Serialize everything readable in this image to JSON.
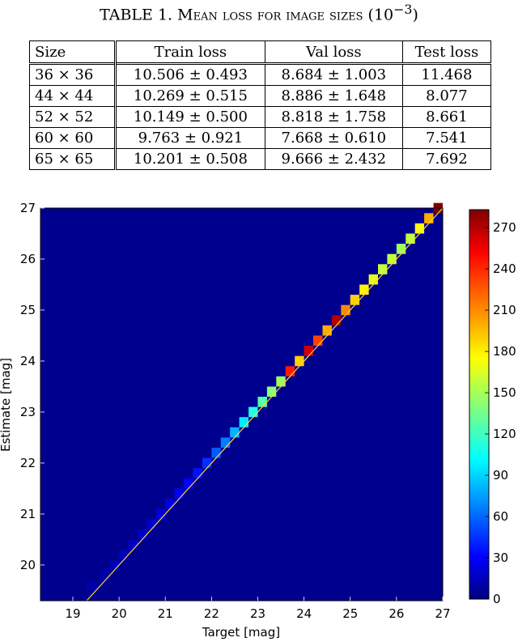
{
  "caption": {
    "prefix": "TABLE 1. ",
    "title_sc": "Mean loss for image sizes",
    "unit_base": "(10",
    "unit_exp": "−3",
    "unit_close": ")"
  },
  "table": {
    "headers": [
      "Size",
      "Train loss",
      "Val loss",
      "Test loss"
    ],
    "rows": [
      [
        "36 × 36",
        "10.506 ± 0.493",
        "8.684 ± 1.003",
        "11.468"
      ],
      [
        "44 × 44",
        "10.269 ± 0.515",
        "8.886 ± 1.648",
        "8.077"
      ],
      [
        "52 × 52",
        "10.149 ± 0.500",
        "8.818 ± 1.758",
        "8.661"
      ],
      [
        "60 × 60",
        "9.763 ± 0.921",
        "7.668 ± 0.610",
        "7.541"
      ],
      [
        "65 × 65",
        "10.201 ± 0.508",
        "9.666 ± 2.432",
        "7.692"
      ]
    ]
  },
  "chart_data": {
    "type": "heatmap",
    "xlabel": "Target [mag]",
    "ylabel": "Estimate [mag]",
    "xlim": [
      18.3,
      27
    ],
    "ylim": [
      19.3,
      27
    ],
    "xticks": [
      "19",
      "20",
      "21",
      "22",
      "23",
      "24",
      "25",
      "26",
      "27"
    ],
    "yticks": [
      "20",
      "21",
      "22",
      "23",
      "24",
      "25",
      "26",
      "27"
    ],
    "bin_width_mag": 0.2,
    "colorbar": {
      "ticks": [
        "0",
        "30",
        "60",
        "90",
        "120",
        "150",
        "180",
        "210",
        "240",
        "270"
      ],
      "range": [
        0,
        283
      ],
      "colormap": "jet"
    },
    "background_color": "#00008f",
    "identity_line": {
      "from": [
        19.3,
        19.3
      ],
      "to": [
        27,
        27
      ],
      "color": "#ffd23f"
    },
    "cells": [
      {
        "x": 19.3,
        "y": 19.5,
        "v": 10
      },
      {
        "x": 19.6,
        "y": 19.7,
        "v": 12
      },
      {
        "x": 19.8,
        "y": 19.9,
        "v": 14
      },
      {
        "x": 20.0,
        "y": 20.1,
        "v": 16
      },
      {
        "x": 20.2,
        "y": 20.3,
        "v": 18
      },
      {
        "x": 20.4,
        "y": 20.5,
        "v": 20
      },
      {
        "x": 20.6,
        "y": 20.7,
        "v": 22
      },
      {
        "x": 20.8,
        "y": 20.9,
        "v": 24
      },
      {
        "x": 21.0,
        "y": 21.1,
        "v": 28
      },
      {
        "x": 21.2,
        "y": 21.3,
        "v": 32
      },
      {
        "x": 21.4,
        "y": 21.5,
        "v": 36
      },
      {
        "x": 21.6,
        "y": 21.7,
        "v": 40
      },
      {
        "x": 21.8,
        "y": 21.9,
        "v": 48
      },
      {
        "x": 22.0,
        "y": 22.1,
        "v": 60
      },
      {
        "x": 22.2,
        "y": 22.3,
        "v": 70
      },
      {
        "x": 22.4,
        "y": 22.5,
        "v": 85
      },
      {
        "x": 22.6,
        "y": 22.7,
        "v": 100
      },
      {
        "x": 22.8,
        "y": 22.9,
        "v": 115
      },
      {
        "x": 23.0,
        "y": 23.1,
        "v": 130
      },
      {
        "x": 23.2,
        "y": 23.3,
        "v": 145
      },
      {
        "x": 23.4,
        "y": 23.5,
        "v": 150
      },
      {
        "x": 23.6,
        "y": 23.7,
        "v": 240
      },
      {
        "x": 23.8,
        "y": 23.9,
        "v": 190
      },
      {
        "x": 24.0,
        "y": 24.1,
        "v": 260
      },
      {
        "x": 24.2,
        "y": 24.3,
        "v": 230
      },
      {
        "x": 24.4,
        "y": 24.5,
        "v": 200
      },
      {
        "x": 24.6,
        "y": 24.7,
        "v": 270
      },
      {
        "x": 24.8,
        "y": 24.9,
        "v": 210
      },
      {
        "x": 25.0,
        "y": 25.1,
        "v": 190
      },
      {
        "x": 25.2,
        "y": 25.3,
        "v": 180
      },
      {
        "x": 25.4,
        "y": 25.5,
        "v": 170
      },
      {
        "x": 25.6,
        "y": 25.7,
        "v": 160
      },
      {
        "x": 25.8,
        "y": 25.9,
        "v": 160
      },
      {
        "x": 26.0,
        "y": 26.1,
        "v": 150
      },
      {
        "x": 26.2,
        "y": 26.3,
        "v": 160
      },
      {
        "x": 26.4,
        "y": 26.5,
        "v": 175
      },
      {
        "x": 26.6,
        "y": 26.7,
        "v": 200
      },
      {
        "x": 26.8,
        "y": 26.9,
        "v": 283
      }
    ]
  }
}
